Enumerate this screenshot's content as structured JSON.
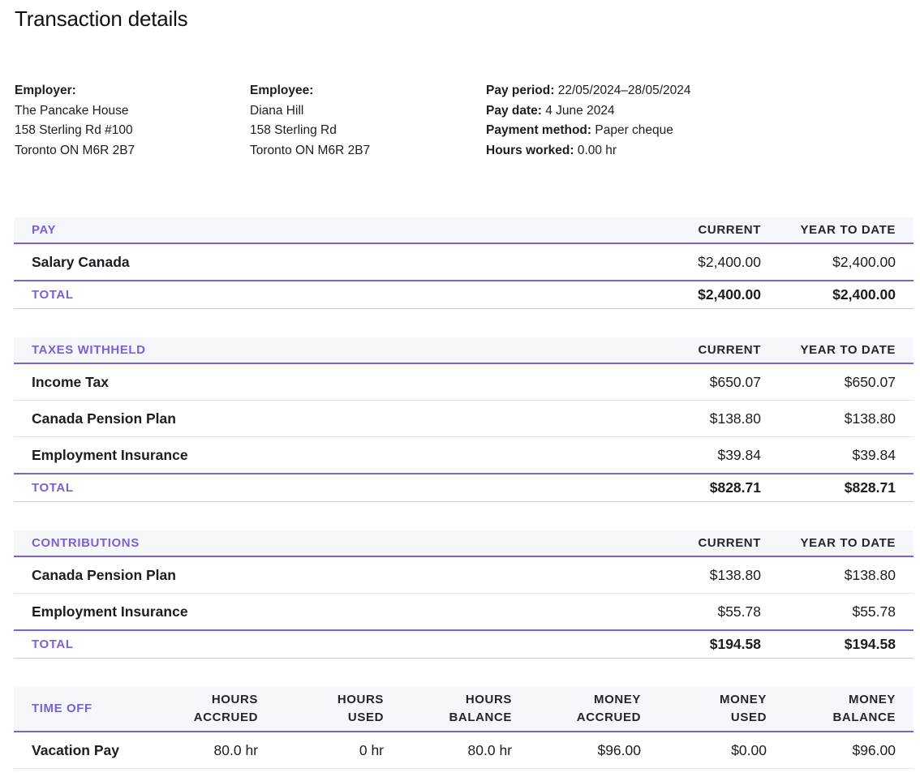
{
  "title": "Transaction details",
  "employer": {
    "label": "Employer:",
    "name": "The Pancake House",
    "address1": "158 Sterling Rd #100",
    "address2": "Toronto ON M6R 2B7"
  },
  "employee": {
    "label": "Employee:",
    "name": "Diana Hill",
    "address1": "158 Sterling Rd",
    "address2": "Toronto ON M6R 2B7"
  },
  "pay_info": {
    "period_label": "Pay period:",
    "period_value": "22/05/2024–28/05/2024",
    "date_label": "Pay date:",
    "date_value": "4 June 2024",
    "method_label": "Payment method:",
    "method_value": "Paper cheque",
    "hours_label": "Hours worked:",
    "hours_value": "0.00 hr"
  },
  "pay": {
    "heading": "PAY",
    "col_current": "CURRENT",
    "col_ytd": "YEAR TO DATE",
    "rows": [
      {
        "name": "Salary Canada",
        "current": "$2,400.00",
        "ytd": "$2,400.00"
      }
    ],
    "total": {
      "label": "TOTAL",
      "current": "$2,400.00",
      "ytd": "$2,400.00"
    }
  },
  "taxes": {
    "heading": "TAXES WITHHELD",
    "col_current": "CURRENT",
    "col_ytd": "YEAR TO DATE",
    "rows": [
      {
        "name": "Income Tax",
        "current": "$650.07",
        "ytd": "$650.07"
      },
      {
        "name": "Canada Pension Plan",
        "current": "$138.80",
        "ytd": "$138.80"
      },
      {
        "name": "Employment Insurance",
        "current": "$39.84",
        "ytd": "$39.84"
      }
    ],
    "total": {
      "label": "TOTAL",
      "current": "$828.71",
      "ytd": "$828.71"
    }
  },
  "contributions": {
    "heading": "CONTRIBUTIONS",
    "col_current": "CURRENT",
    "col_ytd": "YEAR TO DATE",
    "rows": [
      {
        "name": "Canada Pension Plan",
        "current": "$138.80",
        "ytd": "$138.80"
      },
      {
        "name": "Employment Insurance",
        "current": "$55.78",
        "ytd": "$55.78"
      }
    ],
    "total": {
      "label": "TOTAL",
      "current": "$194.58",
      "ytd": "$194.58"
    }
  },
  "time_off": {
    "heading": "TIME OFF",
    "columns": [
      {
        "line1": "HOURS",
        "line2": "ACCRUED"
      },
      {
        "line1": "HOURS",
        "line2": "USED"
      },
      {
        "line1": "HOURS",
        "line2": "BALANCE"
      },
      {
        "line1": "MONEY",
        "line2": "ACCRUED"
      },
      {
        "line1": "MONEY",
        "line2": "USED"
      },
      {
        "line1": "MONEY",
        "line2": "BALANCE"
      }
    ],
    "rows": [
      {
        "name": "Vacation Pay",
        "values": [
          "80.0 hr",
          "0 hr",
          "80.0 hr",
          "$96.00",
          "$0.00",
          "$96.00"
        ]
      }
    ]
  },
  "colors": {
    "accent": "#7b61d4",
    "header_bg": "#f6f7fa",
    "text": "#1b1d22"
  }
}
